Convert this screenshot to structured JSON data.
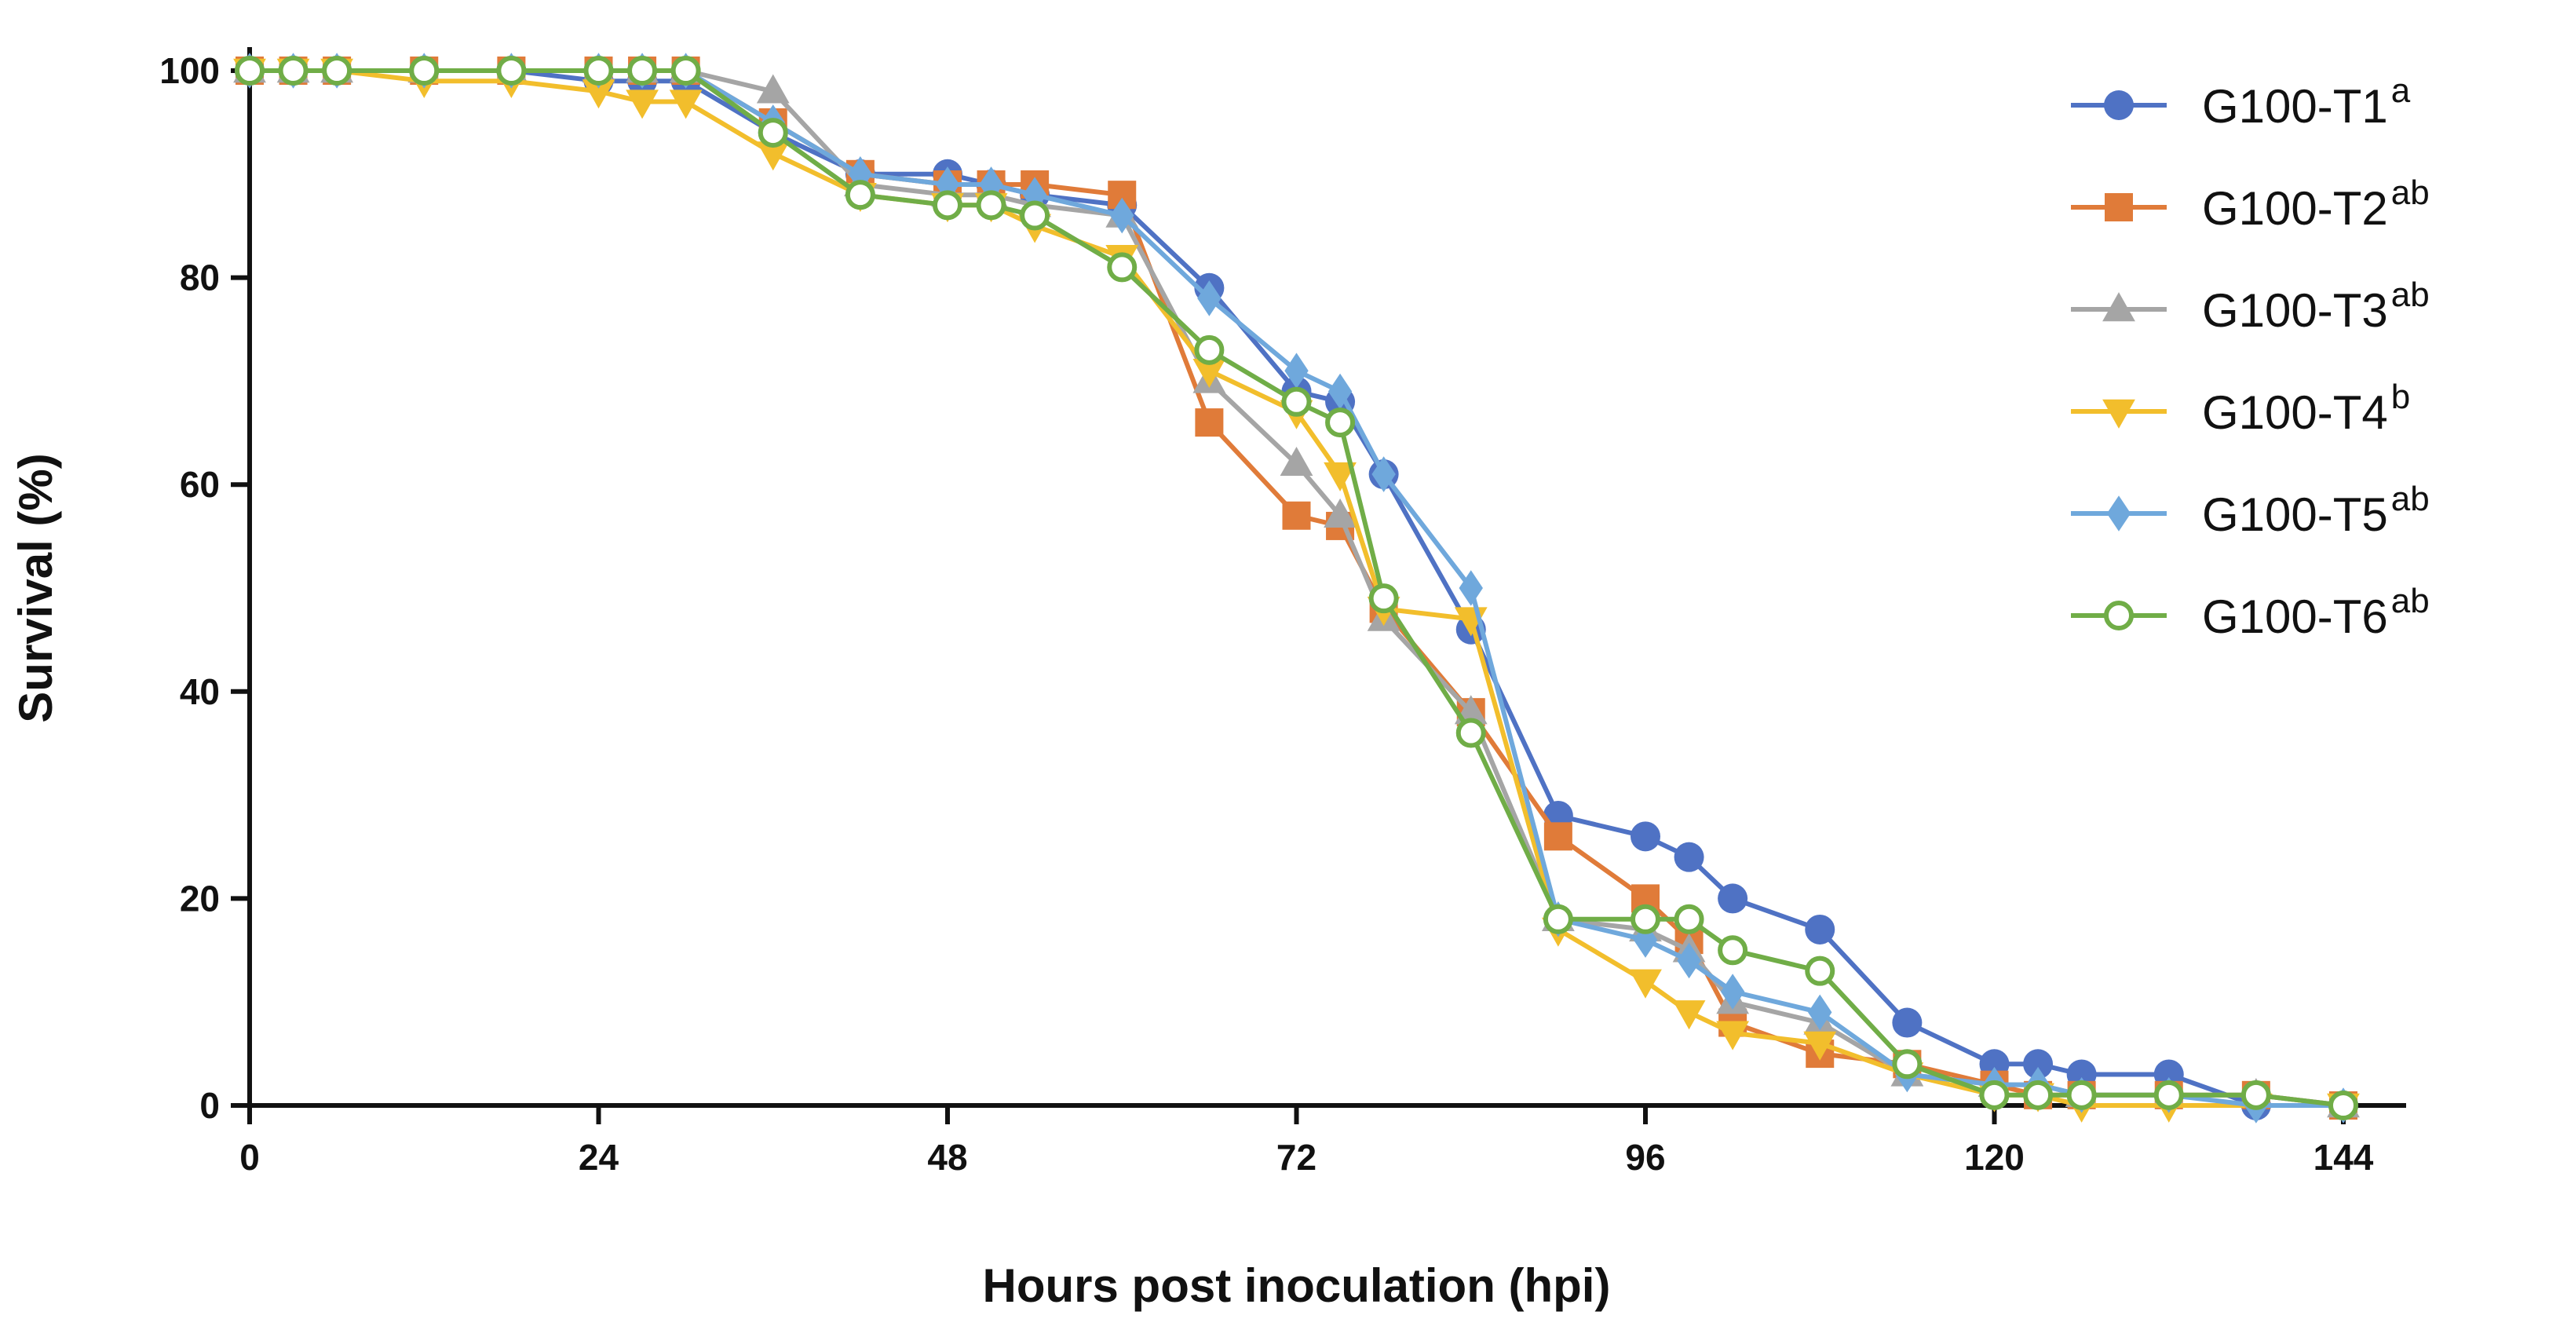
{
  "chart_data": {
    "type": "line",
    "title": "",
    "xlabel": "Hours post inoculation (hpi)",
    "ylabel": "Survival (%)",
    "xlim": [
      0,
      144
    ],
    "ylim": [
      0,
      100
    ],
    "xticks": [
      "0",
      "24",
      "48",
      "72",
      "96",
      "120",
      "144"
    ],
    "yticks": [
      "0",
      "20",
      "40",
      "60",
      "80",
      "100"
    ],
    "grid": false,
    "legend_position": "top-right",
    "series": [
      {
        "name": "G100-T1",
        "sup": "a",
        "color": "#4f72c4",
        "marker": "circle",
        "x": [
          0,
          3,
          6,
          12,
          18,
          24,
          27,
          30,
          36,
          42,
          48,
          51,
          54,
          60,
          66,
          72,
          75,
          78,
          84,
          90,
          96,
          99,
          102,
          108,
          114,
          120,
          123,
          126,
          132,
          138,
          144
        ],
        "y": [
          100,
          100,
          100,
          100,
          100,
          99,
          99,
          99,
          94,
          90,
          90,
          89,
          88,
          87,
          79,
          69,
          68,
          61,
          46,
          28,
          26,
          24,
          20,
          17,
          8,
          4,
          4,
          3,
          3,
          0,
          0
        ]
      },
      {
        "name": "G100-T2",
        "sup": "ab",
        "color": "#e07b39",
        "marker": "square",
        "x": [
          0,
          3,
          6,
          12,
          18,
          24,
          27,
          30,
          36,
          42,
          48,
          51,
          54,
          60,
          66,
          72,
          75,
          78,
          84,
          90,
          96,
          99,
          102,
          108,
          114,
          120,
          123,
          126,
          132,
          138,
          144
        ],
        "y": [
          100,
          100,
          100,
          100,
          100,
          100,
          100,
          100,
          95,
          90,
          89,
          89,
          89,
          88,
          66,
          57,
          56,
          48,
          38,
          26,
          20,
          16,
          8,
          5,
          4,
          2,
          1,
          1,
          1,
          1,
          0
        ]
      },
      {
        "name": "G100-T3",
        "sup": "ab",
        "color": "#a5a5a5",
        "marker": "triangle-up",
        "x": [
          0,
          3,
          6,
          12,
          18,
          24,
          27,
          30,
          36,
          42,
          48,
          51,
          54,
          60,
          66,
          72,
          75,
          78,
          84,
          90,
          96,
          99,
          102,
          108,
          114,
          120,
          123,
          126,
          132,
          138,
          144
        ],
        "y": [
          100,
          100,
          100,
          100,
          100,
          100,
          100,
          100,
          98,
          89,
          88,
          88,
          87,
          86,
          70,
          62,
          57,
          47,
          38,
          18,
          17,
          15,
          10,
          8,
          3,
          2,
          2,
          1,
          1,
          1,
          0
        ]
      },
      {
        "name": "G100-T4",
        "sup": "b",
        "color": "#f2be2c",
        "marker": "triangle-down",
        "x": [
          0,
          3,
          6,
          12,
          18,
          24,
          27,
          30,
          36,
          42,
          48,
          51,
          54,
          60,
          66,
          72,
          75,
          78,
          84,
          90,
          96,
          99,
          102,
          108,
          114,
          120,
          123,
          126,
          132,
          138,
          144
        ],
        "y": [
          100,
          100,
          100,
          99,
          99,
          98,
          97,
          97,
          92,
          88,
          87,
          87,
          85,
          82,
          71,
          67,
          61,
          48,
          47,
          17,
          12,
          9,
          7,
          6,
          3,
          1,
          1,
          0,
          0,
          0,
          0
        ]
      },
      {
        "name": "G100-T5",
        "sup": "ab",
        "color": "#6fa8dc",
        "marker": "diamond",
        "x": [
          0,
          3,
          6,
          12,
          18,
          24,
          27,
          30,
          36,
          42,
          48,
          51,
          54,
          60,
          66,
          72,
          75,
          78,
          84,
          90,
          96,
          99,
          102,
          108,
          114,
          120,
          123,
          126,
          132,
          138,
          144
        ],
        "y": [
          100,
          100,
          100,
          100,
          100,
          100,
          100,
          100,
          95,
          90,
          89,
          89,
          88,
          86,
          78,
          71,
          69,
          61,
          50,
          18,
          16,
          14,
          11,
          9,
          3,
          2,
          2,
          1,
          1,
          0,
          0
        ]
      },
      {
        "name": "G100-T6",
        "sup": "ab",
        "color": "#70ad47",
        "marker": "circle-open",
        "x": [
          0,
          3,
          6,
          12,
          18,
          24,
          27,
          30,
          36,
          42,
          48,
          51,
          54,
          60,
          66,
          72,
          75,
          78,
          84,
          90,
          96,
          99,
          102,
          108,
          114,
          120,
          123,
          126,
          132,
          138,
          144
        ],
        "y": [
          100,
          100,
          100,
          100,
          100,
          100,
          100,
          100,
          94,
          88,
          87,
          87,
          86,
          81,
          73,
          68,
          66,
          49,
          36,
          18,
          18,
          18,
          15,
          13,
          4,
          1,
          1,
          1,
          1,
          1,
          0
        ]
      }
    ]
  }
}
